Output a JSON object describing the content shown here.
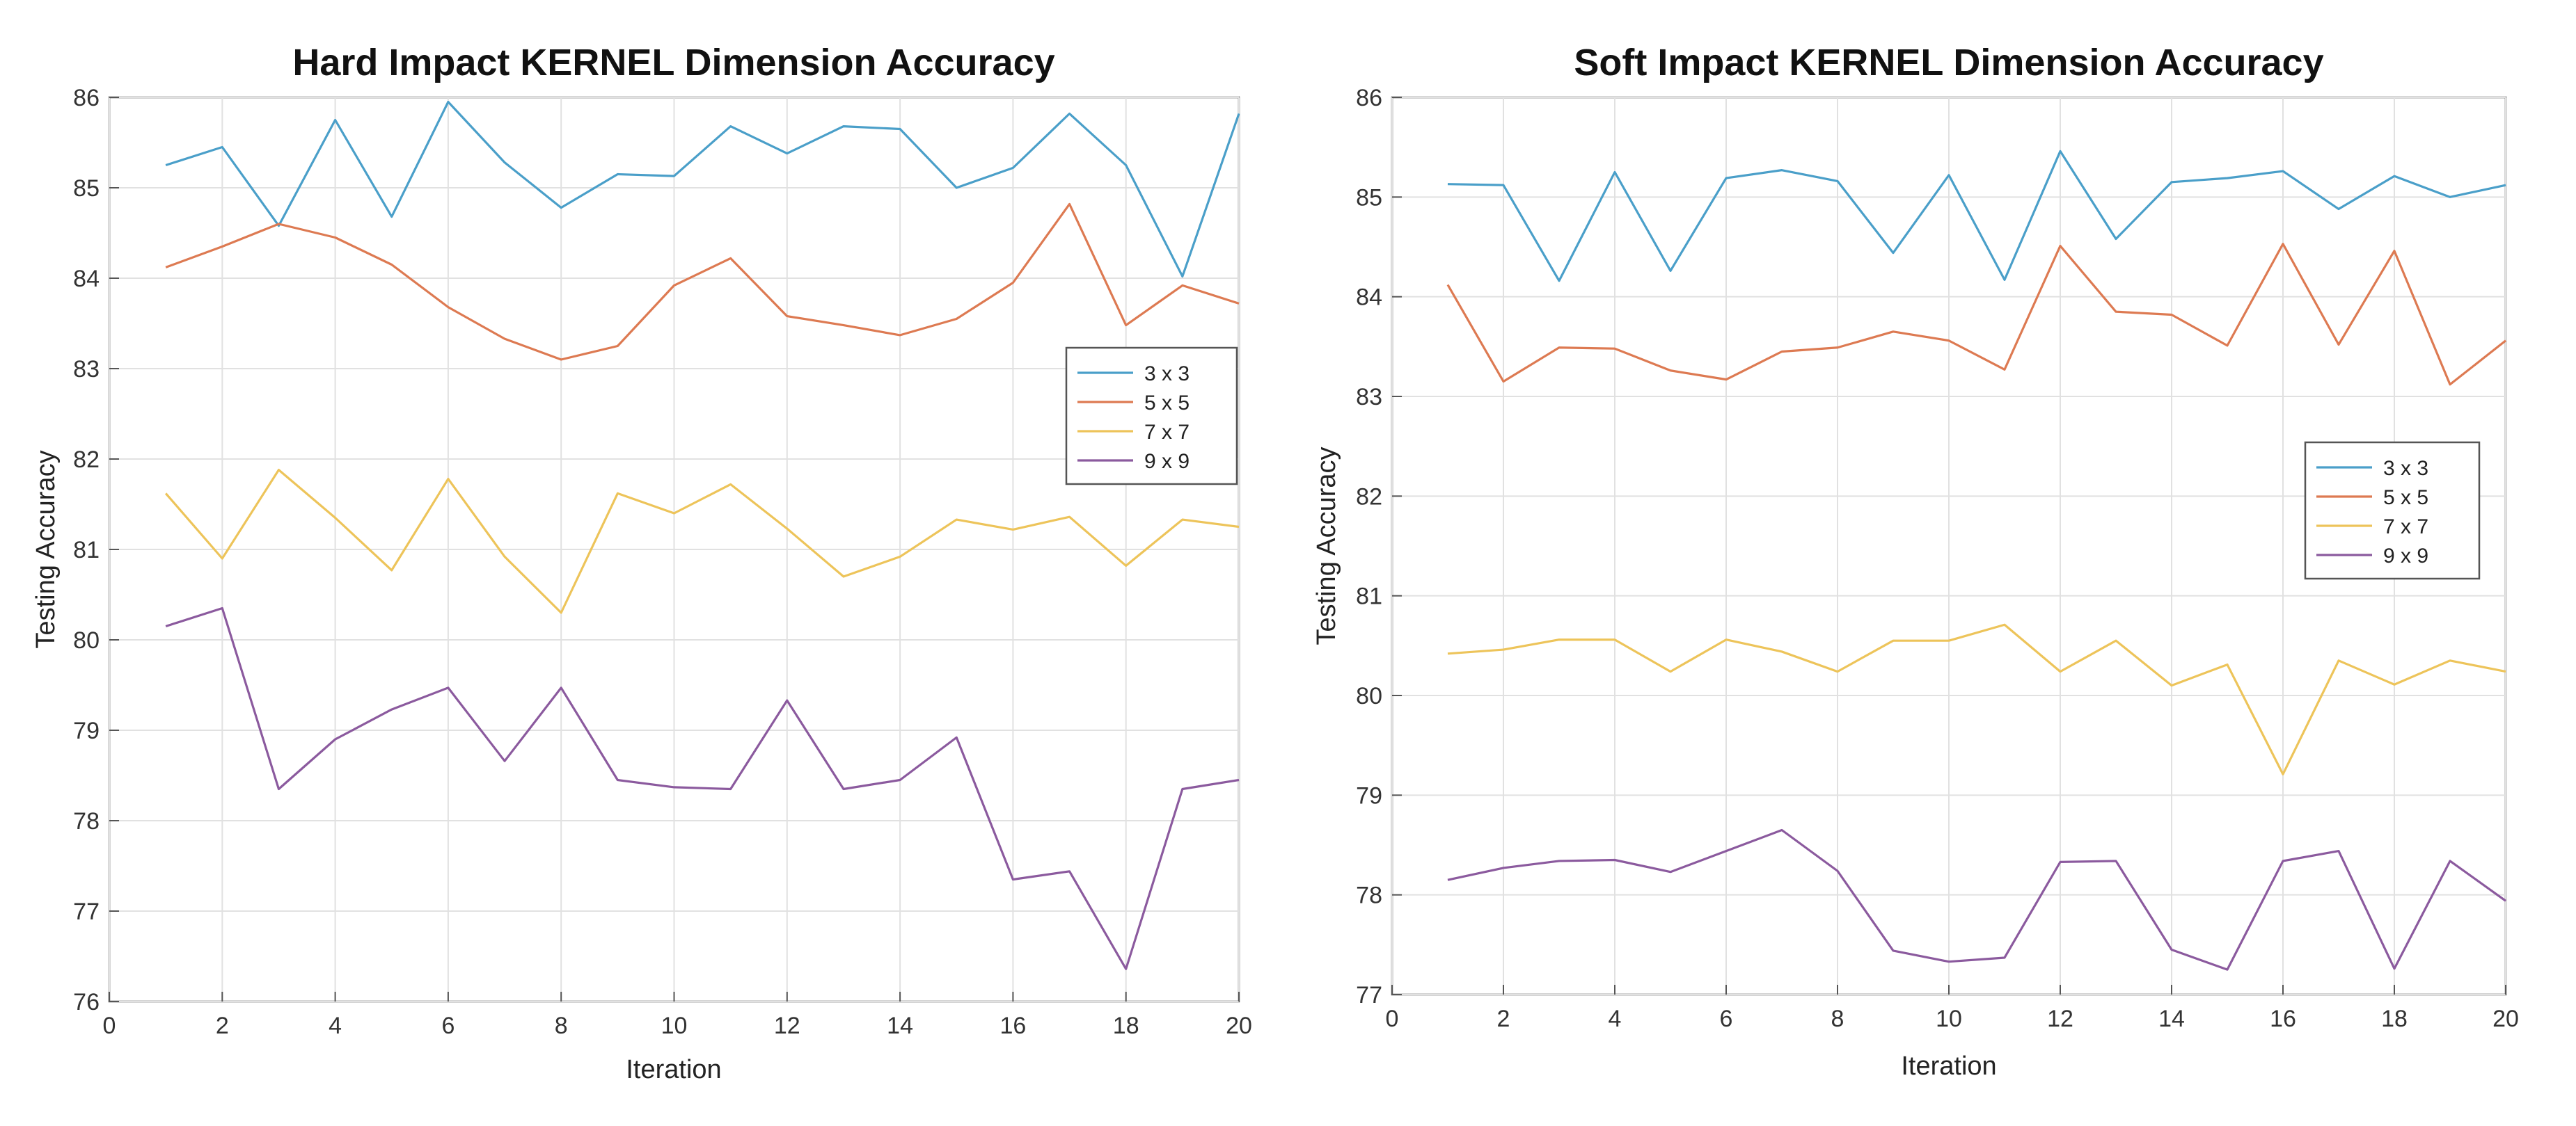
{
  "colors": {
    "3 x 3": "#4a9fc9",
    "5 x 5": "#dd7a52",
    "7 x 7": "#edc45a",
    "9 x 9": "#8b5a9e"
  },
  "chart_data": [
    {
      "type": "line",
      "title": "Hard Impact KERNEL Dimension Accuracy",
      "xlabel": "Iteration",
      "ylabel": "Testing Accuracy",
      "xlim": [
        0,
        20
      ],
      "ylim": [
        76,
        86
      ],
      "xticks": [
        0,
        2,
        4,
        6,
        8,
        10,
        12,
        14,
        16,
        18,
        20
      ],
      "yticks": [
        76,
        77,
        78,
        79,
        80,
        81,
        82,
        83,
        84,
        85,
        86
      ],
      "grid": true,
      "legend_position": "right-middle",
      "x": [
        1,
        2,
        3,
        4,
        5,
        6,
        7,
        8,
        9,
        10,
        11,
        12,
        13,
        14,
        15,
        16,
        17,
        18,
        19,
        20
      ],
      "series": [
        {
          "name": "3 x 3",
          "values": [
            85.25,
            85.45,
            84.58,
            85.75,
            84.68,
            85.95,
            85.28,
            84.78,
            85.15,
            85.13,
            85.68,
            85.38,
            85.68,
            85.65,
            85.0,
            85.22,
            85.82,
            85.25,
            84.02,
            85.82
          ]
        },
        {
          "name": "5 x 5",
          "values": [
            84.12,
            84.35,
            84.6,
            84.45,
            84.15,
            83.68,
            83.33,
            83.1,
            83.25,
            83.92,
            84.22,
            83.58,
            83.48,
            83.37,
            83.55,
            83.95,
            84.82,
            83.48,
            83.92,
            83.72
          ]
        },
        {
          "name": "7 x 7",
          "values": [
            81.62,
            80.9,
            81.88,
            81.35,
            80.77,
            81.78,
            80.92,
            80.3,
            81.62,
            81.4,
            81.72,
            81.23,
            80.7,
            80.92,
            81.33,
            81.22,
            81.36,
            80.82,
            81.33,
            81.25
          ]
        },
        {
          "name": "9 x 9",
          "values": [
            80.15,
            80.35,
            78.35,
            78.9,
            79.23,
            79.47,
            78.66,
            79.47,
            78.45,
            78.37,
            78.35,
            79.33,
            78.35,
            78.45,
            78.92,
            77.35,
            77.44,
            76.36,
            78.35,
            78.45
          ]
        }
      ]
    },
    {
      "type": "line",
      "title": "Soft Impact KERNEL Dimension Accuracy",
      "xlabel": "Iteration",
      "ylabel": "Testing Accuracy",
      "xlim": [
        0,
        20
      ],
      "ylim": [
        77,
        86
      ],
      "xticks": [
        0,
        2,
        4,
        6,
        8,
        10,
        12,
        14,
        16,
        18,
        20
      ],
      "yticks": [
        77,
        78,
        79,
        80,
        81,
        82,
        83,
        84,
        85,
        86
      ],
      "grid": true,
      "legend_position": "right-middle",
      "x": [
        1,
        2,
        3,
        4,
        5,
        6,
        7,
        8,
        9,
        10,
        11,
        12,
        13,
        14,
        15,
        16,
        17,
        18,
        19,
        20
      ],
      "series": [
        {
          "name": "3 x 3",
          "values": [
            85.13,
            85.12,
            84.16,
            85.25,
            84.26,
            85.19,
            85.27,
            85.16,
            84.44,
            85.22,
            84.17,
            85.46,
            84.58,
            85.15,
            85.19,
            85.26,
            84.88,
            85.21,
            85.0,
            85.12
          ]
        },
        {
          "name": "5 x 5",
          "values": [
            84.12,
            83.15,
            83.49,
            83.48,
            83.26,
            83.17,
            83.45,
            83.49,
            83.65,
            83.56,
            83.27,
            84.51,
            83.85,
            83.82,
            83.51,
            84.53,
            83.52,
            84.46,
            83.12,
            83.56
          ]
        },
        {
          "name": "7 x 7",
          "values": [
            80.42,
            80.46,
            80.56,
            80.56,
            80.24,
            80.56,
            80.44,
            80.24,
            80.55,
            80.55,
            80.71,
            80.24,
            80.55,
            80.1,
            80.31,
            79.21,
            80.35,
            80.11,
            80.35,
            80.24
          ]
        },
        {
          "name": "9 x 9",
          "values": [
            78.15,
            78.27,
            78.34,
            78.35,
            78.23,
            78.44,
            78.65,
            78.24,
            77.44,
            77.33,
            77.37,
            78.33,
            78.34,
            77.45,
            77.25,
            78.34,
            78.44,
            77.26,
            78.34,
            77.94
          ]
        }
      ]
    }
  ]
}
